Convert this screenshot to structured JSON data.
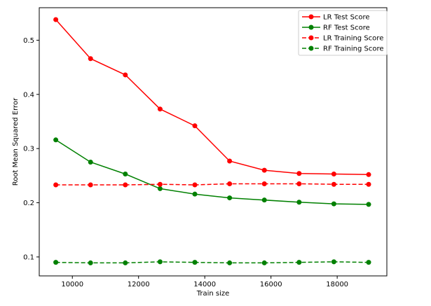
{
  "chart_data": {
    "type": "line",
    "title": "",
    "xlabel": "Train size",
    "ylabel": "Root Mean Squared Error",
    "xlim": [
      9000,
      19500
    ],
    "ylim": [
      0.065,
      0.56
    ],
    "xticks": [
      10000,
      12000,
      14000,
      16000,
      18000
    ],
    "xtick_labels": [
      "10000",
      "12000",
      "14000",
      "16000",
      "18000"
    ],
    "yticks": [
      0.1,
      0.2,
      0.3,
      0.4,
      0.5
    ],
    "ytick_labels": [
      "0.1",
      "0.2",
      "0.3",
      "0.4",
      "0.5"
    ],
    "grid": false,
    "legend_position": "top-right",
    "x": [
      9500,
      10550,
      11600,
      12650,
      13700,
      14750,
      15800,
      16850,
      17900,
      18950
    ],
    "series": [
      {
        "name": "LR Test Score",
        "color": "#ff0000",
        "line_style": "solid",
        "marker": "circle",
        "values": [
          0.538,
          0.466,
          0.436,
          0.373,
          0.342,
          0.277,
          0.26,
          0.254,
          0.253,
          0.252
        ]
      },
      {
        "name": "RF Test Score",
        "color": "#008000",
        "line_style": "solid",
        "marker": "circle",
        "values": [
          0.316,
          0.275,
          0.253,
          0.226,
          0.216,
          0.209,
          0.205,
          0.201,
          0.198,
          0.197
        ]
      },
      {
        "name": "LR Training Score",
        "color": "#ff0000",
        "line_style": "dashed",
        "marker": "circle",
        "values": [
          0.233,
          0.233,
          0.233,
          0.234,
          0.233,
          0.235,
          0.235,
          0.235,
          0.234,
          0.234
        ]
      },
      {
        "name": "RF Training Score",
        "color": "#008000",
        "line_style": "dashed",
        "marker": "circle",
        "values": [
          0.09,
          0.089,
          0.089,
          0.091,
          0.09,
          0.089,
          0.089,
          0.09,
          0.091,
          0.09
        ]
      }
    ]
  }
}
